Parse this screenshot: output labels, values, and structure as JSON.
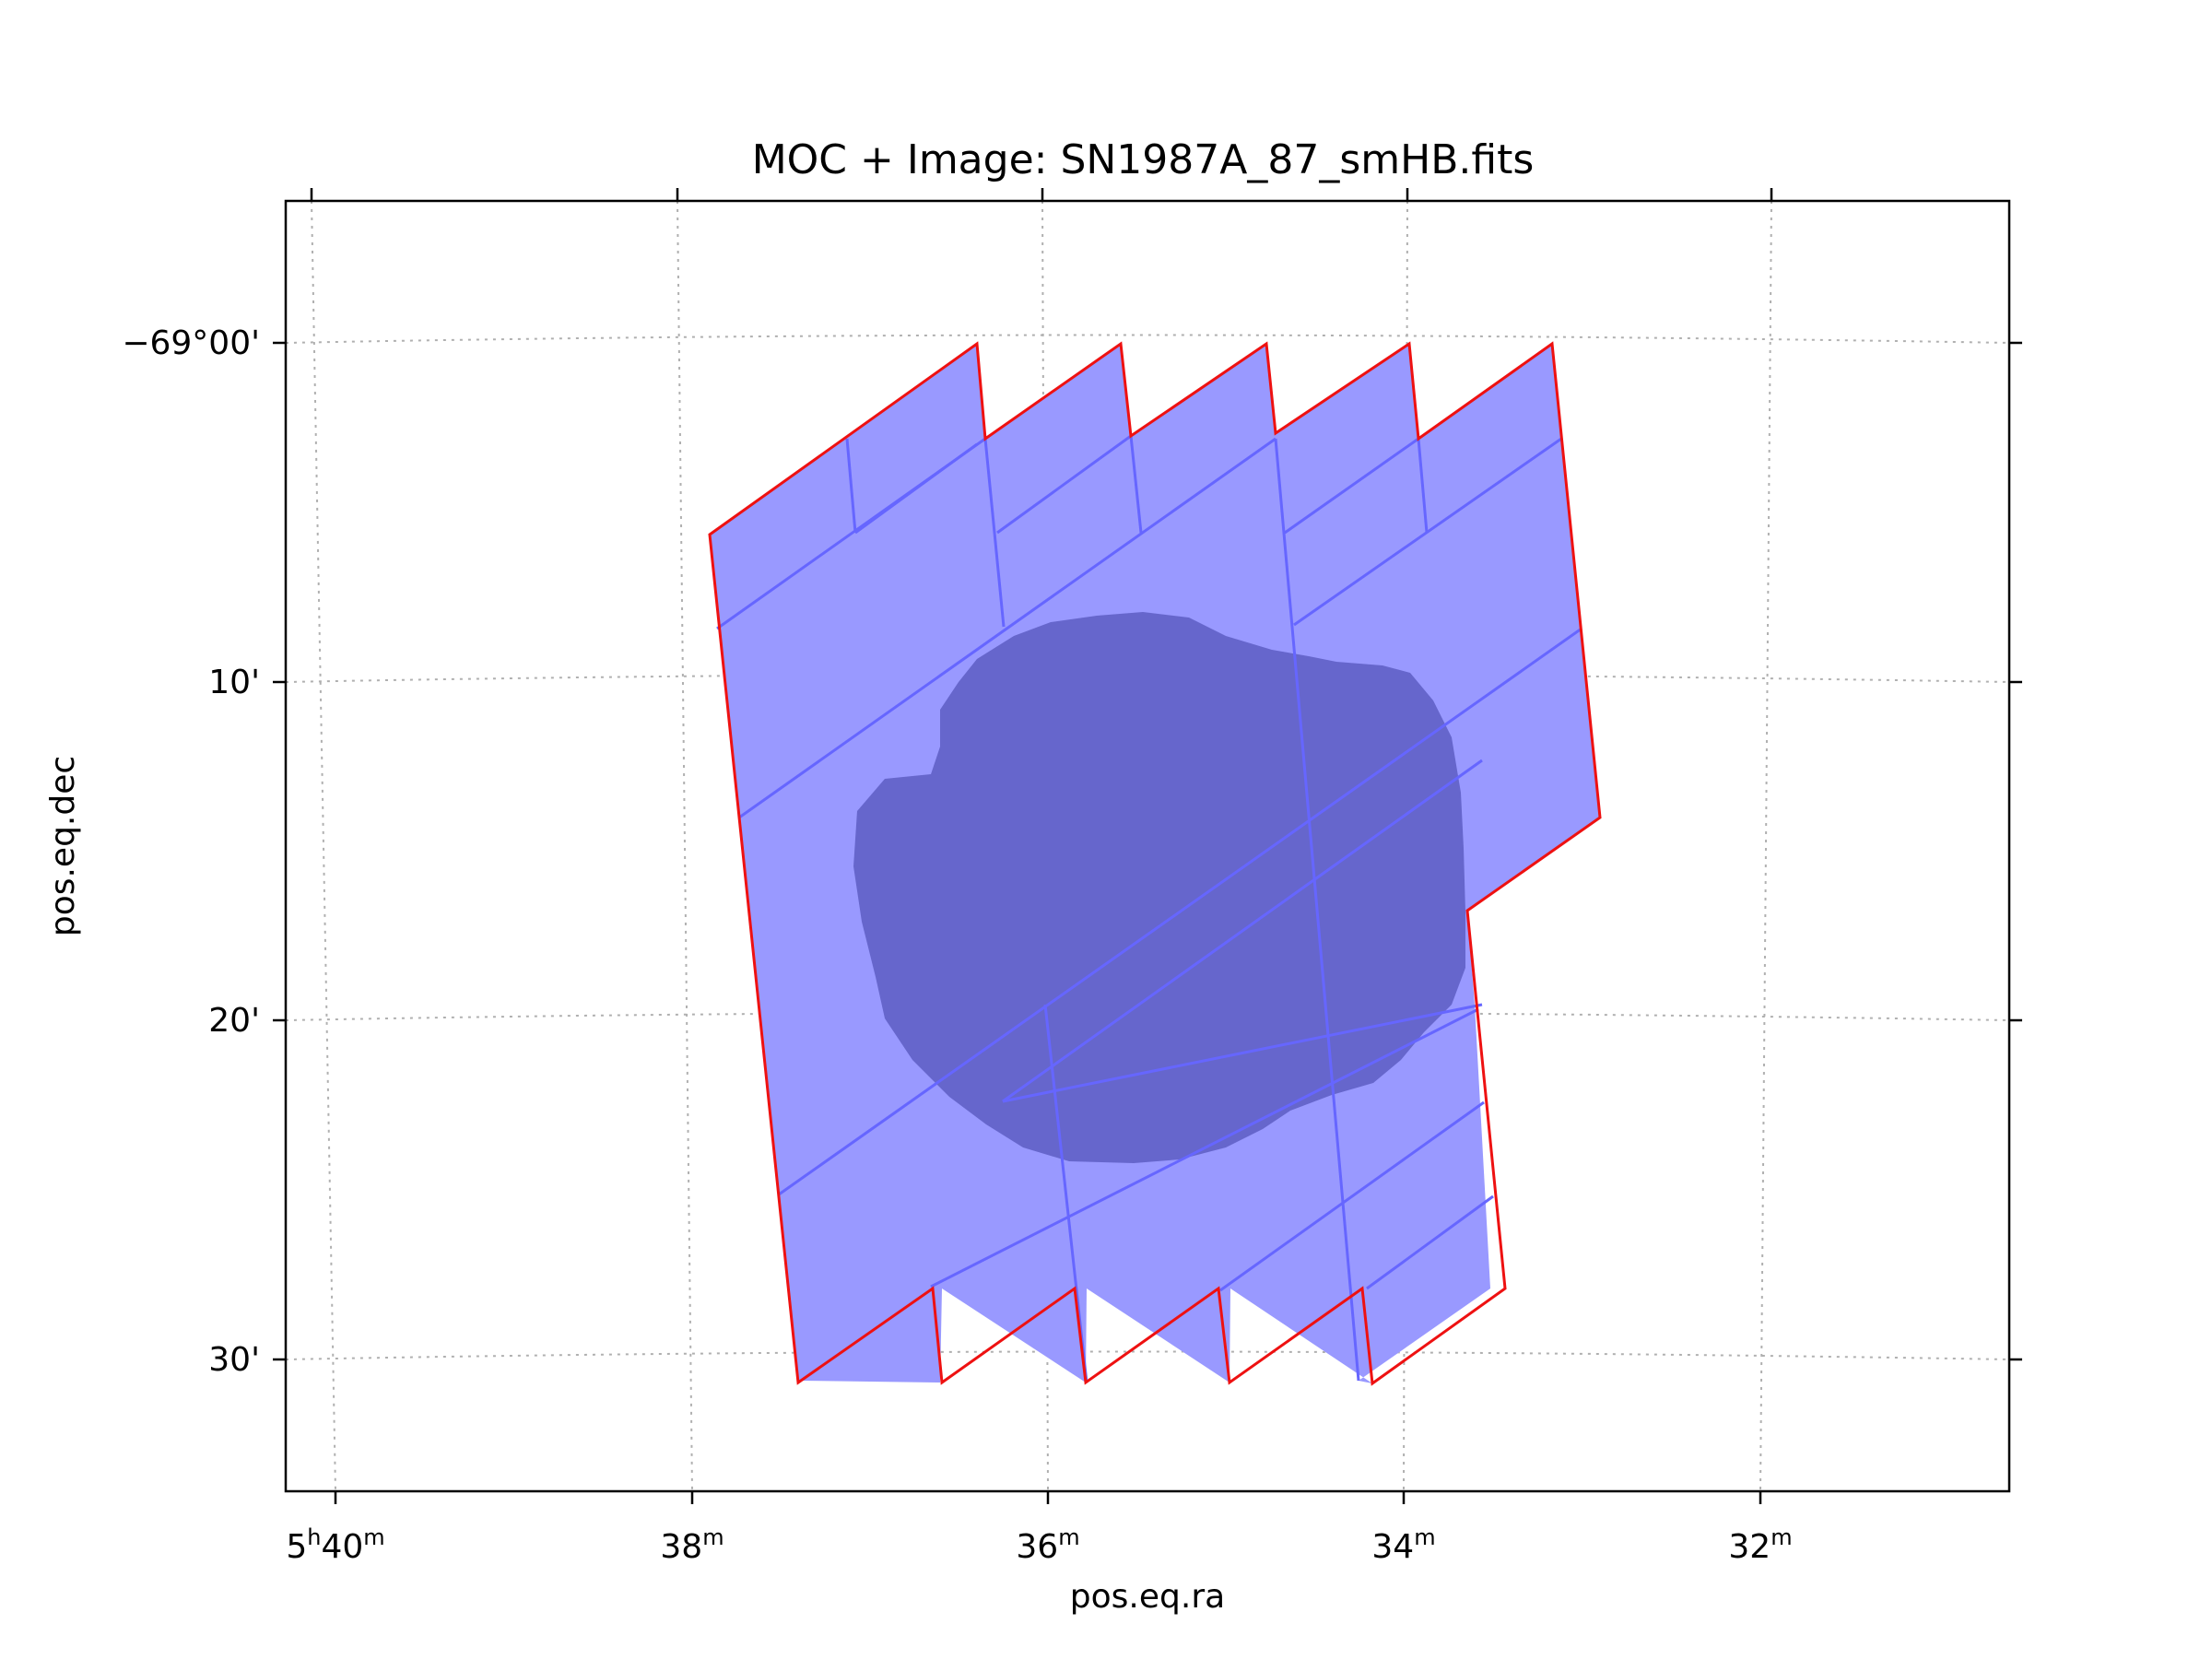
{
  "chart_data": {
    "type": "map",
    "title": "MOC + Image: SN1987A_87_smHB.fits",
    "xlabel": "pos.eq.ra",
    "ylabel": "pos.eq.dec",
    "x_ticks": [
      {
        "value": 40,
        "main": "5",
        "sup1": "h",
        "num": "40",
        "sup2": "m"
      },
      {
        "value": 38,
        "main": "",
        "sup1": "",
        "num": "38",
        "sup2": "m"
      },
      {
        "value": 36,
        "main": "",
        "sup1": "",
        "num": "36",
        "sup2": "m"
      },
      {
        "value": 34,
        "main": "",
        "sup1": "",
        "num": "34",
        "sup2": "m"
      },
      {
        "value": 32,
        "main": "",
        "sup1": "",
        "num": "32",
        "sup2": "m"
      }
    ],
    "y_ticks": [
      {
        "value": 0,
        "label": "−69°00'"
      },
      {
        "value": 10,
        "label": "10'"
      },
      {
        "value": 20,
        "label": "20'"
      },
      {
        "value": 30,
        "label": "30'"
      }
    ],
    "ra_range_minutes": [
      40.2,
      30.5
    ],
    "dec_range_arcmin_below_minus69": [
      34.0,
      -4.0
    ],
    "grid": true,
    "grid_style": "dotted",
    "colors": {
      "moc_fill": "#9999ff",
      "moc_cell_edge": "#6666ff",
      "moc_border": "#ee1111",
      "image_fill": "#6666cc",
      "grid": "#b0b0b0"
    }
  }
}
